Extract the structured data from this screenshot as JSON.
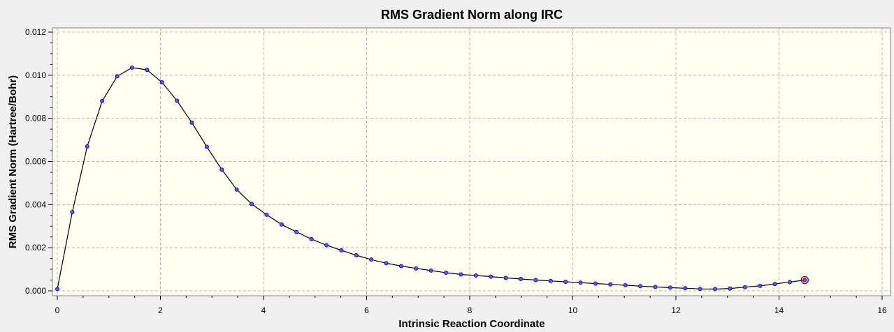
{
  "chart_data": {
    "type": "line",
    "title": "RMS Gradient Norm along IRC",
    "xlabel": "Intrinsic Reaction Coordinate",
    "ylabel": "RMS Gradient Norm (Hartree/Bohr)",
    "xlim": [
      0,
      16
    ],
    "ylim": [
      0,
      0.012
    ],
    "x_ticks": [
      "0",
      "2",
      "4",
      "6",
      "8",
      "10",
      "12",
      "14",
      "16"
    ],
    "y_ticks": [
      "0.000",
      "0.002",
      "0.004",
      "0.006",
      "0.008",
      "0.010",
      "0.012"
    ],
    "grid": true,
    "highlighted_point_index": 50,
    "colors": {
      "plot_background": "#fffff2",
      "line": "#000000",
      "marker_fill": "#5a5aff",
      "marker_stroke": "#000080",
      "highlight_ring": "#c00000",
      "grid": "#b4b4b4"
    },
    "series": [
      {
        "x": [
          0.0,
          0.29,
          0.58,
          0.87,
          1.16,
          1.45,
          1.74,
          2.03,
          2.32,
          2.61,
          2.9,
          3.19,
          3.48,
          3.77,
          4.06,
          4.35,
          4.64,
          4.93,
          5.22,
          5.51,
          5.8,
          6.09,
          6.38,
          6.67,
          6.96,
          7.25,
          7.54,
          7.83,
          8.12,
          8.41,
          8.7,
          8.99,
          9.28,
          9.57,
          9.86,
          10.15,
          10.44,
          10.73,
          11.02,
          11.31,
          11.6,
          11.89,
          12.18,
          12.47,
          12.76,
          13.05,
          13.34,
          13.63,
          13.92,
          14.21,
          14.5
        ],
        "y": [
          8e-05,
          0.00365,
          0.0067,
          0.0088,
          0.00995,
          0.01035,
          0.01025,
          0.00967,
          0.00882,
          0.0078,
          0.00668,
          0.00562,
          0.0047,
          0.00403,
          0.00353,
          0.00308,
          0.00273,
          0.0024,
          0.00212,
          0.00188,
          0.00165,
          0.00145,
          0.00128,
          0.00115,
          0.00104,
          0.00094,
          0.00084,
          0.00076,
          0.00071,
          0.00066,
          0.0006,
          0.00055,
          0.0005,
          0.00046,
          0.00042,
          0.00038,
          0.00034,
          0.0003,
          0.00026,
          0.00022,
          0.00018,
          0.00015,
          0.00012,
          9e-05,
          8e-05,
          0.00011,
          0.00017,
          0.00023,
          0.00032,
          0.00041,
          0.0005
        ]
      }
    ]
  }
}
